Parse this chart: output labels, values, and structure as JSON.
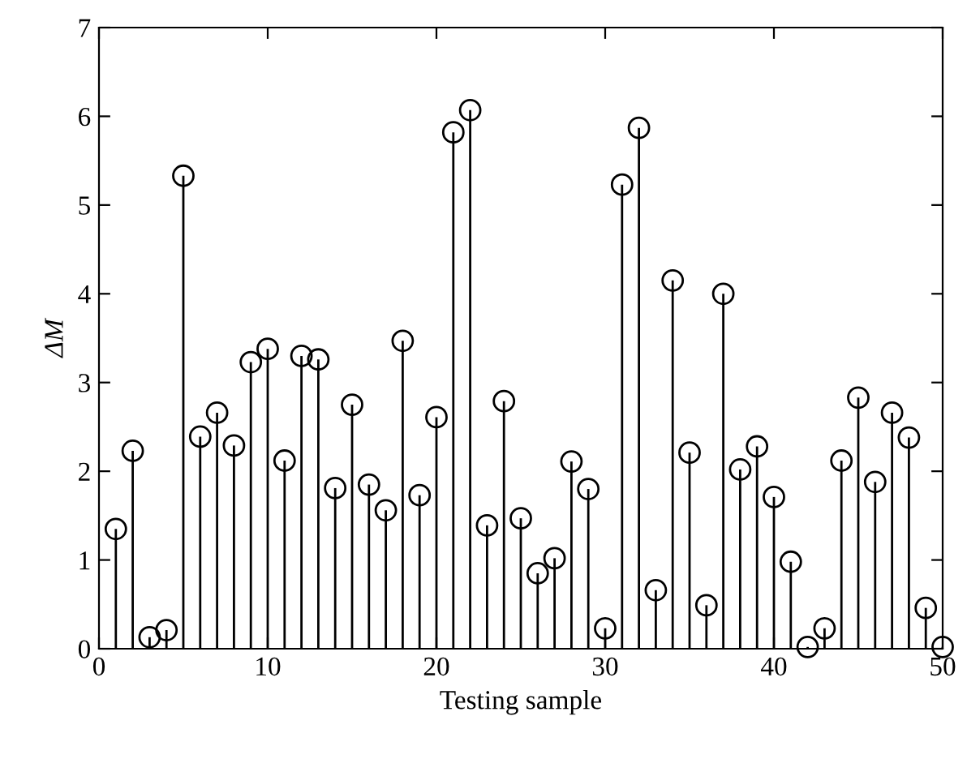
{
  "chart_data": {
    "type": "lollipop",
    "xlabel": "Testing sample",
    "ylabel": "ΔM",
    "x": [
      1,
      2,
      3,
      4,
      5,
      6,
      7,
      8,
      9,
      10,
      11,
      12,
      13,
      14,
      15,
      16,
      17,
      18,
      19,
      20,
      21,
      22,
      23,
      24,
      25,
      26,
      27,
      28,
      29,
      30,
      31,
      32,
      33,
      34,
      35,
      36,
      37,
      38,
      39,
      40,
      41,
      42,
      43,
      44,
      45,
      46,
      47,
      48,
      49,
      50
    ],
    "values": [
      1.35,
      2.23,
      0.13,
      0.21,
      5.33,
      2.39,
      2.66,
      2.29,
      3.23,
      3.38,
      2.12,
      3.3,
      3.26,
      1.81,
      2.75,
      1.85,
      1.56,
      3.47,
      1.73,
      2.61,
      5.82,
      6.07,
      1.39,
      2.79,
      1.47,
      0.85,
      1.02,
      2.11,
      1.8,
      0.23,
      5.23,
      5.87,
      0.66,
      4.15,
      2.21,
      0.49,
      4.0,
      2.02,
      2.28,
      1.71,
      0.98,
      0.02,
      0.23,
      2.12,
      2.83,
      1.88,
      2.66,
      2.38,
      0.46,
      0.02
    ],
    "color": "#000000",
    "marker": "circle",
    "xlim": [
      0,
      50
    ],
    "ylim": [
      0,
      7
    ],
    "xticks": [
      0,
      10,
      20,
      30,
      40,
      50
    ],
    "yticks": [
      0,
      1,
      2,
      3,
      4,
      5,
      6,
      7
    ],
    "grid": false
  }
}
